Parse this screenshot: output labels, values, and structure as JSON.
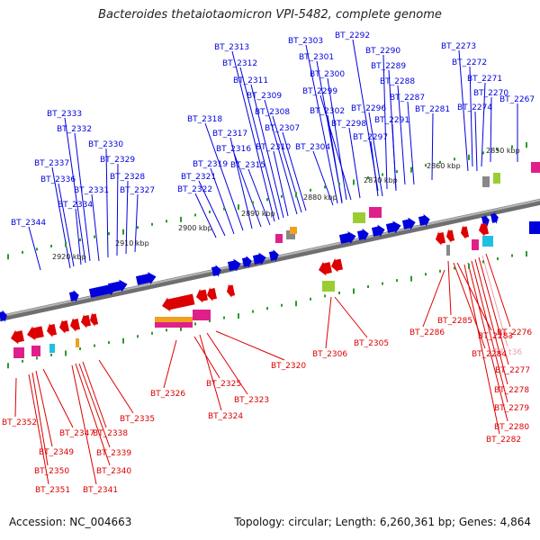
{
  "title": "Bacteroides thetaiotaomicron VPI-5482, complete genome",
  "accession": "Accession: NC_004663",
  "summary": "Topology: circular; Length: 6,260,361 bp; Genes: 4,864",
  "scale_labels": [
    "2850 kbp",
    "2860 kbp",
    "2870 kbp",
    "2880 kbp",
    "2890 kbp",
    "2900 kbp",
    "2910 kbp",
    "2920 kbp"
  ],
  "upper_labels": [
    "BT_2267",
    "BT_2270",
    "BT_2271",
    "BT_2272",
    "BT_2273",
    "BT_2274",
    "BT_2281",
    "BT_2287",
    "BT_2288",
    "BT_2289",
    "BT_2290",
    "BT_2291",
    "BT_2292",
    "BT_2296",
    "BT_2297",
    "BT_2298",
    "BT_2299",
    "BT_2300",
    "BT_2301",
    "BT_2302",
    "BT_2303",
    "BT_2304",
    "BT_2307",
    "BT_2308",
    "BT_2309",
    "BT_2310",
    "BT_2311",
    "BT_2312",
    "BT_2313",
    "BT_2315",
    "BT_2316",
    "BT_2317",
    "BT_2318",
    "BT_2319",
    "BT_2321",
    "BT_2322",
    "BT_2327",
    "BT_2328",
    "BT_2329",
    "BT_2330",
    "BT_2331",
    "BT_2332",
    "BT_2333",
    "BT_2334",
    "BT_2336",
    "BT_2337",
    "BT_2344"
  ],
  "lower_labels": [
    "BT_2276",
    "BT_t36",
    "BT_2277",
    "BT_2278",
    "BT_2279",
    "BT_2280",
    "BT_2282",
    "BT_2283",
    "BT_2284",
    "BT_2285",
    "BT_2286",
    "BT_2305",
    "BT_2306",
    "BT_2320",
    "BT_2323",
    "BT_2324",
    "BT_2325",
    "BT_2326",
    "BT_2335",
    "BT_2338",
    "BT_2339",
    "BT_2340",
    "BT_2341",
    "BT_2347",
    "BT_2349",
    "BT_2350",
    "BT_2351",
    "BT_2352"
  ],
  "colors": {
    "forward": "#0000dd",
    "reverse": "#dd0000",
    "trna": "#ee88aa",
    "backbone": "#888888",
    "tick_green": "#2a9a2a",
    "pink": "#e0208a",
    "lime": "#9acd32",
    "orange": "#f0a020",
    "cyan": "#20c0e0"
  }
}
